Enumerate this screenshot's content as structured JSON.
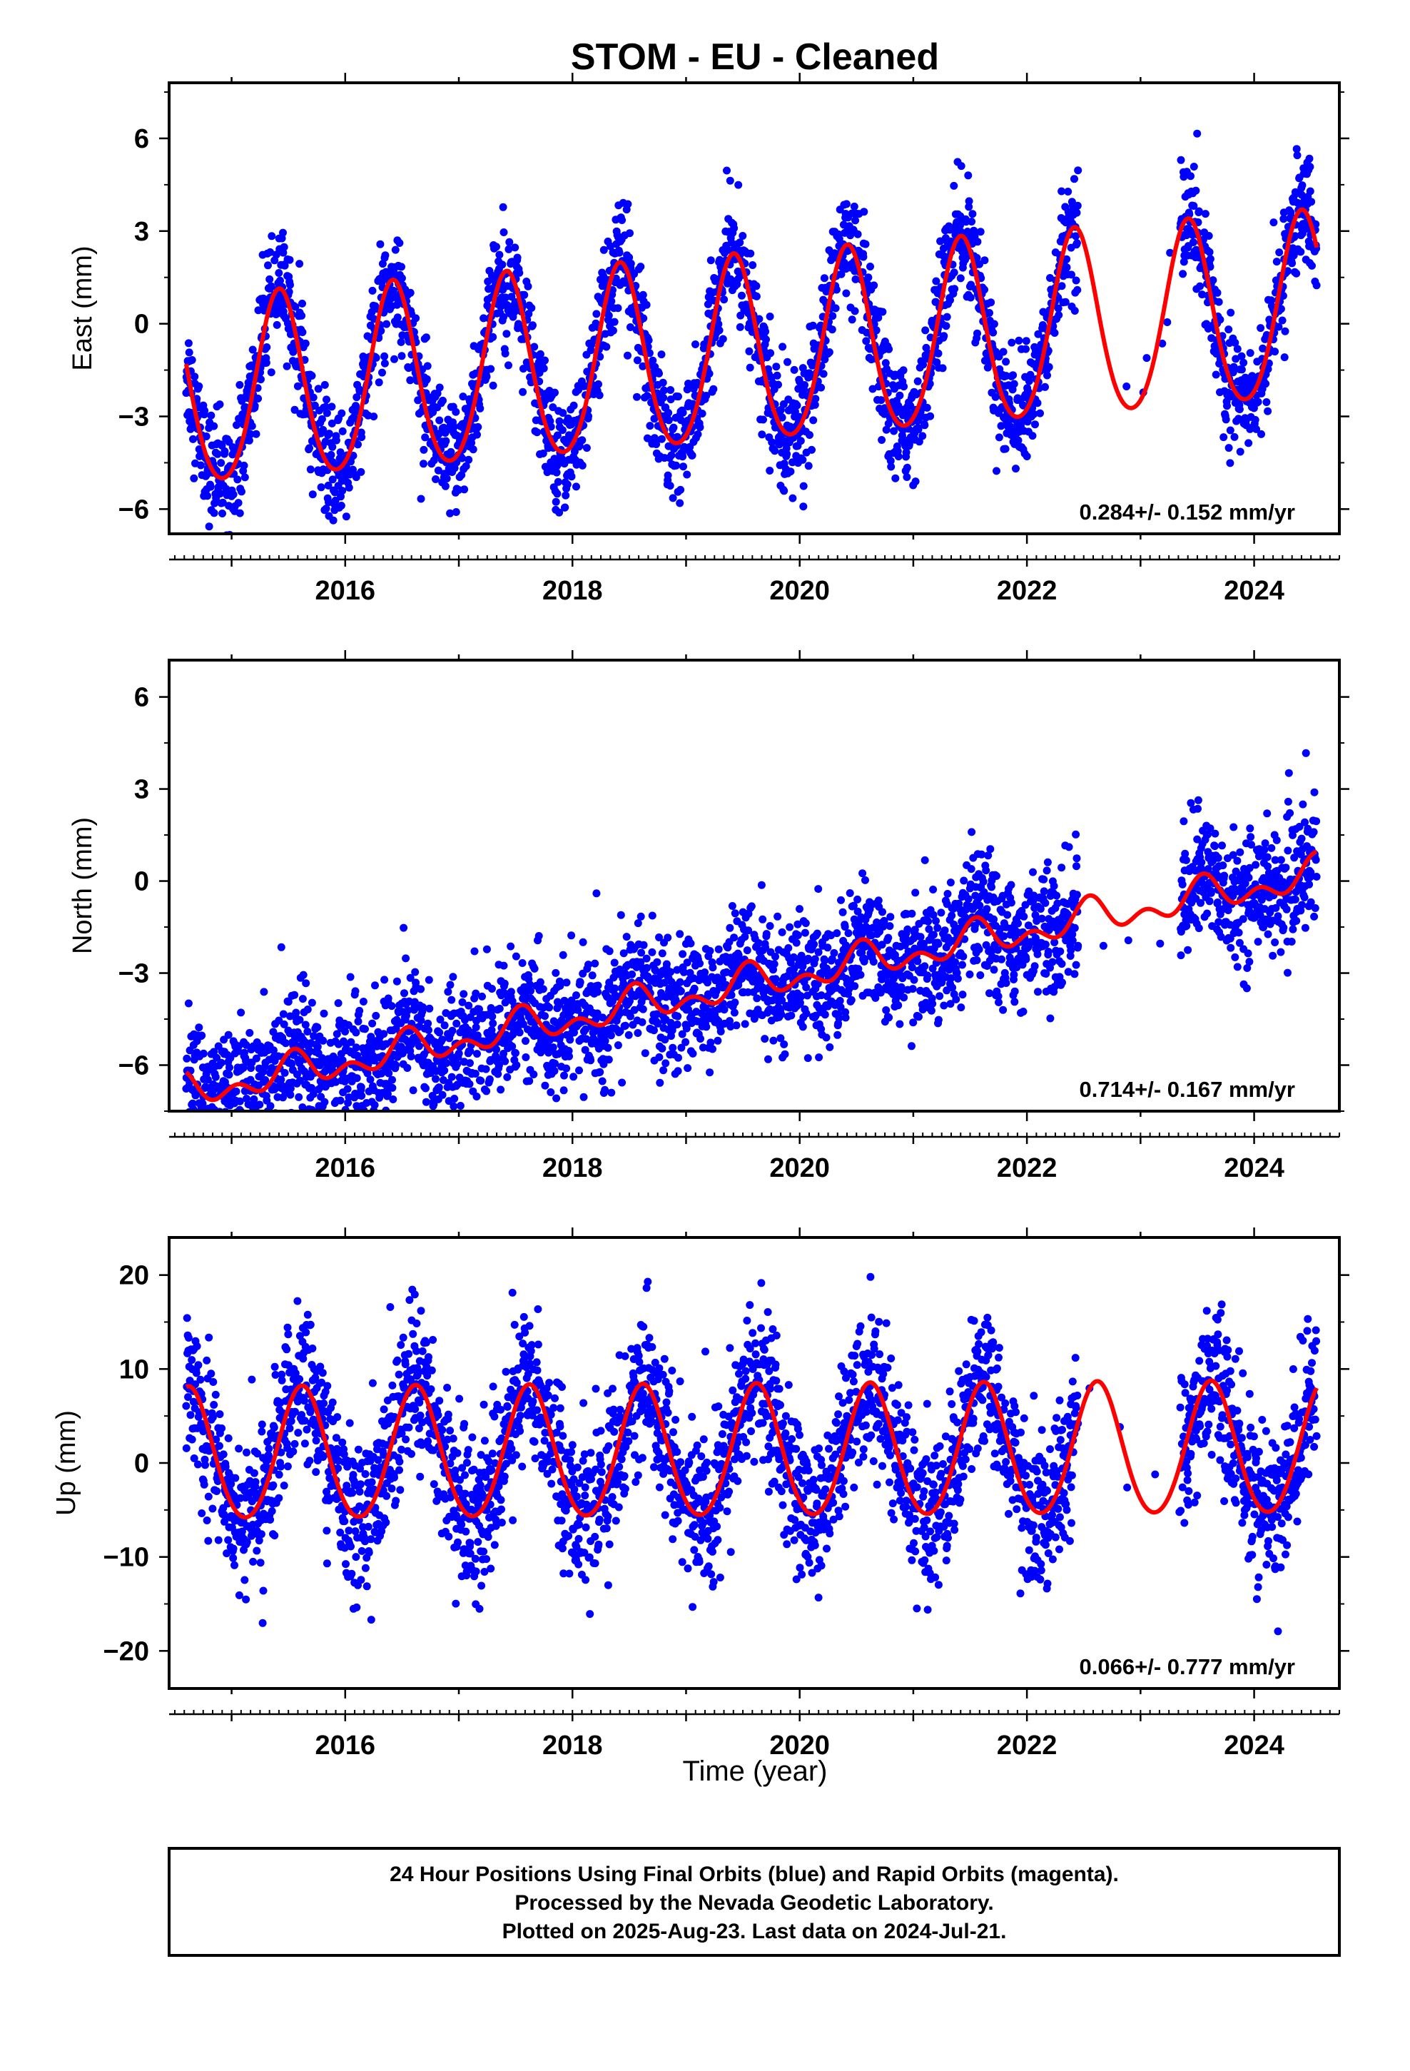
{
  "title": "STOM  - EU - Cleaned",
  "footer": {
    "line1": "24 Hour Positions Using Final Orbits (blue) and Rapid Orbits (magenta).",
    "line2": "Processed by the Nevada Geodetic Laboratory.",
    "line3": "Plotted on 2025-Aug-23. Last data on 2024-Jul-21."
  },
  "xlabel": "Time (year)",
  "colors": {
    "points": "#0000ff",
    "model": "#ff0000",
    "frame": "#000000"
  },
  "chart_data": [
    {
      "type": "scatter",
      "component": "east",
      "ylabel": "East (mm)",
      "xlim": [
        2014.45,
        2024.75
      ],
      "ylim": [
        -6.8,
        7.8
      ],
      "xticks": [
        2016,
        2018,
        2020,
        2022,
        2024
      ],
      "yticks": [
        -6,
        -3,
        0,
        3,
        6
      ],
      "yticklabels": [
        "−6",
        "−3",
        "0",
        "3",
        "6"
      ],
      "rate_text": "0.284+/- 0.152 mm/yr",
      "data_start": 2014.6,
      "data_end": 2024.55,
      "gaps": [
        [
          2022.45,
          2023.35
        ]
      ],
      "model": {
        "offset": -1.0,
        "trend_mm_per_yr": 0.284,
        "annual_amp": 3.0,
        "annual_peak": 0.42,
        "semi_amp": 0.3
      },
      "scatter_sd": 0.9,
      "series": [
        {
          "values": []
        }
      ]
    },
    {
      "type": "scatter",
      "component": "north",
      "ylabel": "North (mm)",
      "xlim": [
        2014.45,
        2024.75
      ],
      "ylim": [
        -7.5,
        7.2
      ],
      "xticks": [
        2016,
        2018,
        2020,
        2022,
        2024
      ],
      "yticks": [
        -6,
        -3,
        0,
        3,
        6
      ],
      "yticklabels": [
        "−6",
        "−3",
        "0",
        "3",
        "6"
      ],
      "rate_text": "0.714+/- 0.167 mm/yr",
      "data_start": 2014.6,
      "data_end": 2024.55,
      "gaps": [
        [
          2022.45,
          2023.35
        ]
      ],
      "model": {
        "offset": -3.4,
        "trend_mm_per_yr": 0.714,
        "annual_amp": 0.4,
        "annual_peak": 0.55,
        "semi_amp": 0.35
      },
      "scatter_sd": 1.0,
      "series": [
        {
          "values": []
        }
      ]
    },
    {
      "type": "scatter",
      "component": "up",
      "ylabel": "Up (mm)",
      "xlim": [
        2014.45,
        2024.75
      ],
      "ylim": [
        -24,
        24
      ],
      "xticks": [
        2016,
        2018,
        2020,
        2022,
        2024
      ],
      "yticks": [
        -20,
        -10,
        0,
        10,
        20
      ],
      "yticklabels": [
        "−20",
        "−10",
        "0",
        "10",
        "20"
      ],
      "rate_text": "0.066+/- 0.777 mm/yr",
      "data_start": 2014.6,
      "data_end": 2024.55,
      "gaps": [
        [
          2022.45,
          2023.35
        ]
      ],
      "model": {
        "offset": 1.0,
        "trend_mm_per_yr": 0.066,
        "annual_amp": 7.0,
        "annual_peak": 0.62,
        "semi_amp": 0.5
      },
      "scatter_sd": 4.0,
      "series": [
        {
          "values": []
        }
      ]
    }
  ]
}
